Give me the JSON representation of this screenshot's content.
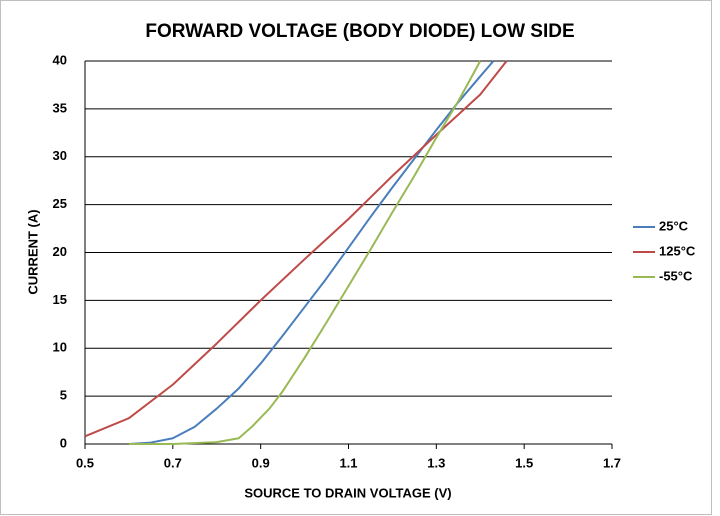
{
  "chart_data": {
    "type": "line",
    "title": "FORWARD VOLTAGE (BODY DIODE) LOW SIDE",
    "x_label": "SOURCE TO DRAIN VOLTAGE (V)",
    "y_label": "CURRENT (A)",
    "xlim": [
      0.5,
      1.7
    ],
    "xticks": [
      0.5,
      0.7,
      0.9,
      1.1,
      1.3,
      1.5,
      1.7
    ],
    "ylim": [
      0,
      40
    ],
    "yticks": [
      0,
      5,
      10,
      15,
      20,
      25,
      30,
      35,
      40
    ],
    "grid": true,
    "legend": "right",
    "series": [
      {
        "name": "25°C",
        "color": "#4a7ebb",
        "x": [
          0.6,
          0.65,
          0.7,
          0.75,
          0.8,
          0.85,
          0.9,
          0.95,
          1.0,
          1.05,
          1.1,
          1.15,
          1.2,
          1.25,
          1.3,
          1.35,
          1.4,
          1.43
        ],
        "values": [
          0,
          0.15,
          0.6,
          1.8,
          3.7,
          5.8,
          8.4,
          11.3,
          14.3,
          17.3,
          20.5,
          23.7,
          26.8,
          29.8,
          32.8,
          35.7,
          38.4,
          40
        ]
      },
      {
        "name": "125°C",
        "color": "#be4b48",
        "x": [
          0.5,
          0.6,
          0.7,
          0.8,
          0.9,
          1.0,
          1.1,
          1.2,
          1.3,
          1.4,
          1.46
        ],
        "values": [
          0.8,
          2.7,
          6.2,
          10.5,
          15,
          19.3,
          23.5,
          28,
          32.3,
          36.5,
          40
        ]
      },
      {
        "name": "-55°C",
        "color": "#98b954",
        "x": [
          0.6,
          0.7,
          0.8,
          0.85,
          0.88,
          0.92,
          0.95,
          1.0,
          1.05,
          1.1,
          1.15,
          1.2,
          1.25,
          1.3,
          1.35,
          1.4
        ],
        "values": [
          0,
          0,
          0.2,
          0.6,
          1.8,
          3.7,
          5.5,
          9,
          12.7,
          16.5,
          20.3,
          24.2,
          28,
          32,
          35.8,
          40
        ]
      }
    ]
  }
}
